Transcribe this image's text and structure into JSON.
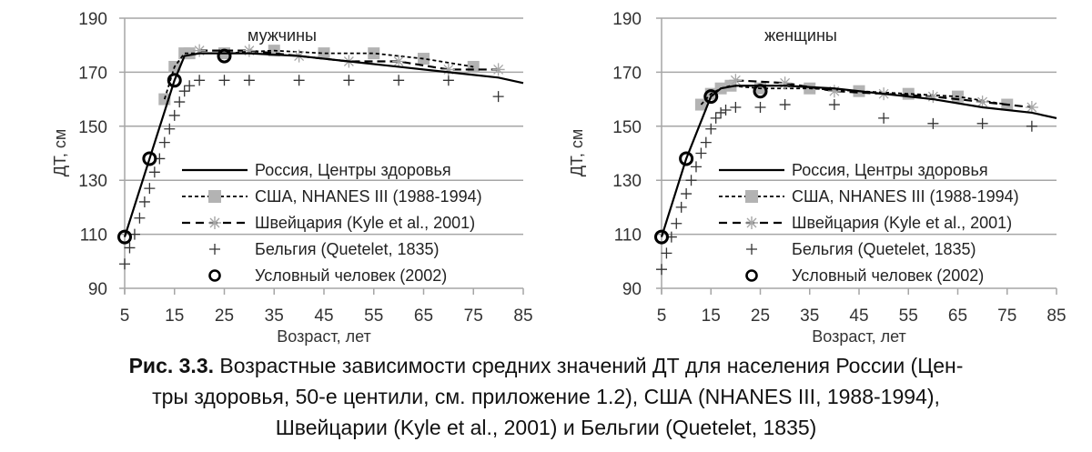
{
  "figure": {
    "caption_label": "Рис. 3.3.",
    "caption_line1": "Возрастные зависимости средних значений ДТ для населения России (Цен-",
    "caption_line2": "тры здоровья, 50-е центили, см. приложение 1.2), США (NHANES III, 1988-1994),",
    "caption_line3": "Швейцарии (Kyle et al., 2001) и Бельгии (Quetelet, 1835)"
  },
  "legend": [
    {
      "label": "Россия, Центры здоровья",
      "style": "solid-line"
    },
    {
      "label": "США, NHANES III (1988-1994)",
      "style": "dotted-line-square"
    },
    {
      "label": "Швейцария (Kyle et al., 2001)",
      "style": "dashed-line-asterisk"
    },
    {
      "label": "Бельгия (Quetelet, 1835)",
      "style": "plus-marker"
    },
    {
      "label": "Условный человек (2002)",
      "style": "circle-marker"
    }
  ],
  "colors": {
    "grid": "#a6a6a6",
    "square": "#b3b3b3",
    "asterisk": "#a6a6a6",
    "line": "#000000"
  },
  "chart_data": [
    {
      "type": "line",
      "title": "мужчины",
      "xlabel": "Возраст, лет",
      "ylabel": "ДТ, см",
      "xlim": [
        5,
        85
      ],
      "ylim": [
        90,
        190
      ],
      "xticks": [
        5,
        15,
        25,
        35,
        45,
        55,
        65,
        75,
        85
      ],
      "yticks": [
        90,
        110,
        130,
        150,
        170,
        190
      ],
      "grid": "horizontal",
      "legend_position": "lower right inside",
      "series": [
        {
          "name": "Россия, Центры здоровья",
          "x": [
            5,
            10,
            15,
            17,
            20,
            25,
            30,
            40,
            50,
            60,
            70,
            80,
            85
          ],
          "y": [
            109,
            138,
            167,
            176,
            177,
            177,
            177,
            176,
            174,
            172,
            170,
            168,
            166
          ]
        },
        {
          "name": "США, NHANES III (1988-1994)",
          "x": [
            13,
            15,
            17,
            18,
            25,
            35,
            45,
            55,
            65,
            75
          ],
          "y": [
            160,
            172,
            177,
            177,
            177,
            178,
            177,
            177,
            175,
            172
          ]
        },
        {
          "name": "Швейцария (Kyle et al., 2001)",
          "x": [
            20,
            30,
            40,
            50,
            60,
            70,
            80
          ],
          "y": [
            178,
            178,
            176,
            174,
            174,
            171,
            171
          ]
        },
        {
          "name": "Бельгия (Quetelet, 1835)",
          "x": [
            5,
            6,
            7,
            8,
            9,
            10,
            11,
            12,
            13,
            14,
            15,
            16,
            17,
            18,
            20,
            25,
            30,
            40,
            50,
            60,
            70,
            80
          ],
          "y": [
            99,
            105,
            110,
            116,
            122,
            127,
            133,
            138,
            144,
            149,
            154,
            159,
            163,
            165,
            167,
            167,
            167,
            167,
            167,
            167,
            167,
            161
          ]
        },
        {
          "name": "Условный человек (2002)",
          "x": [
            5,
            10,
            15,
            25
          ],
          "y": [
            109,
            138,
            167,
            176
          ]
        }
      ]
    },
    {
      "type": "line",
      "title": "женщины",
      "xlabel": "Возраст, лет",
      "ylabel": "ДТ, см",
      "xlim": [
        5,
        85
      ],
      "ylim": [
        90,
        190
      ],
      "xticks": [
        5,
        15,
        25,
        35,
        45,
        55,
        65,
        75,
        85
      ],
      "yticks": [
        90,
        110,
        130,
        150,
        170,
        190
      ],
      "grid": "horizontal",
      "legend_position": "lower right inside",
      "series": [
        {
          "name": "Россия, Центры здоровья",
          "x": [
            5,
            10,
            15,
            17,
            20,
            25,
            30,
            40,
            50,
            60,
            70,
            80,
            85
          ],
          "y": [
            109,
            138,
            161,
            164,
            165,
            165,
            165,
            164,
            162,
            160,
            157,
            155,
            153
          ]
        },
        {
          "name": "США, NHANES III (1988-1994)",
          "x": [
            13,
            15,
            17,
            19,
            25,
            35,
            45,
            55,
            65,
            75
          ],
          "y": [
            158,
            162,
            164,
            165,
            164,
            164,
            163,
            162,
            161,
            158
          ]
        },
        {
          "name": "Швейцария (Kyle et al., 2001)",
          "x": [
            20,
            30,
            40,
            50,
            60,
            70,
            80
          ],
          "y": [
            167,
            166,
            163,
            162,
            161,
            159,
            157
          ]
        },
        {
          "name": "Бельгия (Quetelet, 1835)",
          "x": [
            5,
            6,
            7,
            8,
            9,
            10,
            11,
            12,
            13,
            14,
            15,
            16,
            17,
            18,
            20,
            25,
            30,
            40,
            50,
            60,
            70,
            80
          ],
          "y": [
            97,
            103,
            109,
            114,
            120,
            125,
            130,
            135,
            140,
            144,
            149,
            153,
            155,
            156,
            157,
            157,
            158,
            158,
            153,
            151,
            151,
            150
          ]
        },
        {
          "name": "Условный человек (2002)",
          "x": [
            5,
            10,
            15,
            25
          ],
          "y": [
            109,
            138,
            161,
            163
          ]
        }
      ]
    }
  ]
}
